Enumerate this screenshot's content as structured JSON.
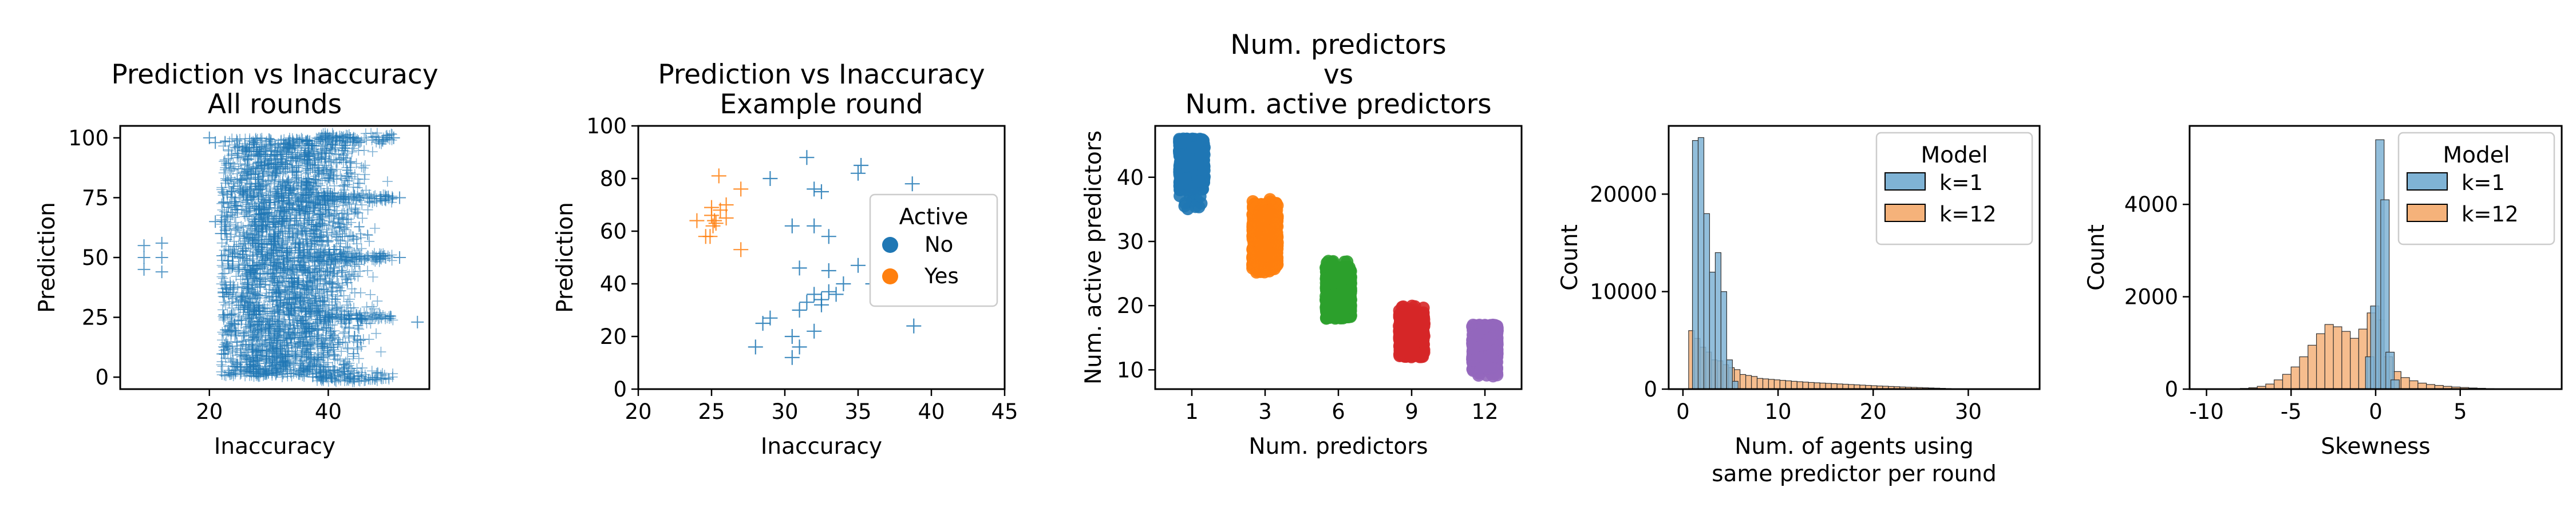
{
  "colors": {
    "blue": "#1f77b4",
    "orange": "#ff7f0e",
    "green": "#2ca02c",
    "red": "#d62728",
    "purple": "#9467bd",
    "hist_blue": "#7fb3d5",
    "hist_orange": "#f5b27a"
  },
  "chart_data": [
    {
      "type": "scatter",
      "marker": "plus",
      "title": [
        "Prediction vs Inaccuracy",
        "All rounds"
      ],
      "xlabel": "Inaccuracy",
      "ylabel": "Prediction",
      "xlim": [
        5,
        57
      ],
      "ylim": [
        -5,
        105
      ],
      "xticks": [
        20,
        40
      ],
      "yticks": [
        0,
        25,
        50,
        75,
        100
      ],
      "cloud": {
        "x_range": [
          25,
          50
        ],
        "core_x_range": [
          26,
          37
        ],
        "y_range": [
          0,
          100
        ]
      },
      "points": [
        {
          "x": 9,
          "y": 55
        },
        {
          "x": 9,
          "y": 50
        },
        {
          "x": 9,
          "y": 45
        },
        {
          "x": 12,
          "y": 56
        },
        {
          "x": 12,
          "y": 50
        },
        {
          "x": 12,
          "y": 44
        },
        {
          "x": 20,
          "y": 100
        },
        {
          "x": 21,
          "y": 98
        },
        {
          "x": 21,
          "y": 65
        },
        {
          "x": 22,
          "y": 60
        },
        {
          "x": 52,
          "y": 50
        },
        {
          "x": 55,
          "y": 23
        },
        {
          "x": 52,
          "y": 75
        },
        {
          "x": 51,
          "y": 100
        }
      ]
    },
    {
      "type": "scatter",
      "marker": "plus",
      "title": [
        "Prediction vs Inaccuracy",
        "Example round"
      ],
      "xlabel": "Inaccuracy",
      "ylabel": "Prediction",
      "xlim": [
        20,
        45
      ],
      "ylim": [
        0,
        100
      ],
      "xticks": [
        20,
        25,
        30,
        35,
        40,
        45
      ],
      "yticks": [
        0,
        20,
        40,
        60,
        80,
        100
      ],
      "legend": {
        "title": "Active",
        "placement": "center-right",
        "entries": [
          "No",
          "Yes"
        ]
      },
      "series": [
        {
          "name": "No",
          "points": [
            [
              29,
              80
            ],
            [
              31.5,
              88
            ],
            [
              32,
              76
            ],
            [
              32.5,
              75
            ],
            [
              35,
              82
            ],
            [
              35.2,
              85
            ],
            [
              38.7,
              78
            ],
            [
              30.5,
              62
            ],
            [
              32,
              62
            ],
            [
              33,
              58
            ],
            [
              31,
              46
            ],
            [
              33,
              45
            ],
            [
              35,
              47
            ],
            [
              34,
              40
            ],
            [
              33,
              37
            ],
            [
              33.5,
              36
            ],
            [
              32,
              36
            ],
            [
              31.5,
              33
            ],
            [
              31,
              30
            ],
            [
              32.5,
              32
            ],
            [
              32,
              22
            ],
            [
              30.5,
              20
            ],
            [
              30.5,
              12
            ],
            [
              29,
              27
            ],
            [
              28.5,
              25
            ],
            [
              28,
              16
            ],
            [
              31,
              16
            ],
            [
              38.8,
              24
            ],
            [
              36,
              40
            ],
            [
              32.5,
              34
            ]
          ]
        },
        {
          "name": "Yes",
          "points": [
            [
              25.5,
              81
            ],
            [
              24,
              64
            ],
            [
              25,
              66
            ],
            [
              25.3,
              63
            ],
            [
              25.6,
              68
            ],
            [
              25,
              69
            ],
            [
              26,
              65
            ],
            [
              25.1,
              62
            ],
            [
              24.9,
              58
            ],
            [
              24.6,
              58
            ],
            [
              26,
              70
            ],
            [
              27,
              76
            ],
            [
              27,
              53
            ],
            [
              25.2,
              64
            ]
          ]
        }
      ]
    },
    {
      "type": "scatter",
      "subtype": "strip",
      "title": [
        "Num. predictors",
        "vs",
        "Num. active predictors"
      ],
      "xlabel": "Num. predictors",
      "ylabel": "Num. active predictors",
      "ylim": [
        7,
        48
      ],
      "yticks": [
        10,
        20,
        30,
        40
      ],
      "categories": [
        "1",
        "3",
        "6",
        "9",
        "12"
      ],
      "series": [
        {
          "category": "1",
          "y_range": [
            35,
            46
          ],
          "dense_range": [
            38,
            46
          ]
        },
        {
          "category": "3",
          "y_range": [
            25,
            37
          ],
          "dense_range": [
            26,
            36
          ]
        },
        {
          "category": "6",
          "y_range": [
            18,
            27
          ],
          "dense_range": [
            18,
            26
          ]
        },
        {
          "category": "9",
          "y_range": [
            12,
            20
          ],
          "dense_range": [
            12,
            19
          ]
        },
        {
          "category": "12",
          "y_range": [
            9,
            17
          ],
          "dense_range": [
            10,
            17
          ]
        }
      ]
    },
    {
      "type": "histogram",
      "xlabel": [
        "Num. of agents using",
        "same predictor per round"
      ],
      "ylabel": "Count",
      "xlim": [
        -1.5,
        37.5
      ],
      "ylim": [
        0,
        27000
      ],
      "xticks": [
        0,
        10,
        20,
        30
      ],
      "yticks": [
        0,
        10000,
        20000
      ],
      "legend": {
        "title": "Model",
        "placement": "top-right",
        "entries": [
          "k=1",
          "k=12"
        ]
      },
      "series": [
        {
          "name": "k=1",
          "bins": [
            [
              1,
              25500
            ],
            [
              1.6,
              25800
            ],
            [
              2.2,
              18000
            ],
            [
              2.8,
              12000
            ],
            [
              3.4,
              14000
            ],
            [
              4.0,
              10000
            ],
            [
              4.6,
              3000
            ],
            [
              5.2,
              800
            ]
          ]
        },
        {
          "name": "k=12",
          "bins": [
            [
              0.6,
              6000
            ],
            [
              1.2,
              5200
            ],
            [
              1.8,
              4300
            ],
            [
              2.4,
              3800
            ],
            [
              3.0,
              3000
            ],
            [
              3.6,
              2900
            ],
            [
              4.2,
              2500
            ],
            [
              4.8,
              2200
            ],
            [
              5.4,
              2000
            ],
            [
              6.0,
              1500
            ],
            [
              6.6,
              1400
            ],
            [
              7.2,
              1300
            ],
            [
              7.8,
              1100
            ],
            [
              8.4,
              1050
            ],
            [
              9.0,
              1000
            ],
            [
              9.6,
              950
            ],
            [
              10.2,
              900
            ],
            [
              10.8,
              850
            ],
            [
              11.4,
              800
            ],
            [
              12.0,
              760
            ],
            [
              12.6,
              720
            ],
            [
              13.2,
              680
            ],
            [
              13.8,
              650
            ],
            [
              14.4,
              620
            ],
            [
              15.0,
              590
            ],
            [
              15.6,
              560
            ],
            [
              16.2,
              530
            ],
            [
              16.8,
              500
            ],
            [
              17.4,
              470
            ],
            [
              18.0,
              440
            ],
            [
              18.6,
              410
            ],
            [
              19.2,
              380
            ],
            [
              19.8,
              350
            ],
            [
              20.4,
              320
            ],
            [
              21.0,
              300
            ],
            [
              21.6,
              270
            ],
            [
              22.2,
              250
            ],
            [
              22.8,
              220
            ],
            [
              23.4,
              200
            ],
            [
              24.0,
              180
            ],
            [
              24.6,
              160
            ],
            [
              25.2,
              140
            ],
            [
              25.8,
              120
            ],
            [
              26.4,
              100
            ],
            [
              27.0,
              80
            ],
            [
              27.6,
              60
            ],
            [
              28.2,
              50
            ],
            [
              28.8,
              40
            ],
            [
              29.4,
              30
            ],
            [
              30.0,
              25
            ],
            [
              30.6,
              15
            ],
            [
              31.2,
              10
            ]
          ]
        }
      ]
    },
    {
      "type": "histogram",
      "xlabel": "Skewness",
      "ylabel": "Count",
      "xlim": [
        -11,
        11
      ],
      "ylim": [
        0,
        5700
      ],
      "xticks": [
        -10,
        -5,
        0,
        5
      ],
      "yticks": [
        0,
        2000,
        4000
      ],
      "legend": {
        "title": "Model",
        "placement": "top-right",
        "entries": [
          "k=1",
          "k=12"
        ]
      },
      "series": [
        {
          "name": "k=1",
          "bins": [
            [
              -0.6,
              700
            ],
            [
              -0.3,
              1800
            ],
            [
              0.0,
              5400
            ],
            [
              0.3,
              4100
            ],
            [
              0.6,
              800
            ],
            [
              0.9,
              200
            ]
          ]
        },
        {
          "name": "k=12",
          "bins": [
            [
              -8,
              15
            ],
            [
              -7.5,
              30
            ],
            [
              -7,
              60
            ],
            [
              -6.5,
              110
            ],
            [
              -6,
              200
            ],
            [
              -5.5,
              320
            ],
            [
              -5,
              480
            ],
            [
              -4.5,
              700
            ],
            [
              -4,
              950
            ],
            [
              -3.5,
              1200
            ],
            [
              -3,
              1400
            ],
            [
              -2.5,
              1350
            ],
            [
              -2,
              1250
            ],
            [
              -1.5,
              1100
            ],
            [
              -1,
              1300
            ],
            [
              -0.5,
              1650
            ],
            [
              0,
              1500
            ],
            [
              0.5,
              700
            ],
            [
              1,
              380
            ],
            [
              1.5,
              250
            ],
            [
              2,
              180
            ],
            [
              2.5,
              130
            ],
            [
              3,
              100
            ],
            [
              3.5,
              80
            ],
            [
              4,
              60
            ],
            [
              4.5,
              45
            ],
            [
              5,
              35
            ],
            [
              5.5,
              25
            ],
            [
              6,
              18
            ],
            [
              6.5,
              12
            ],
            [
              7,
              8
            ],
            [
              7.5,
              5
            ]
          ]
        }
      ]
    }
  ]
}
